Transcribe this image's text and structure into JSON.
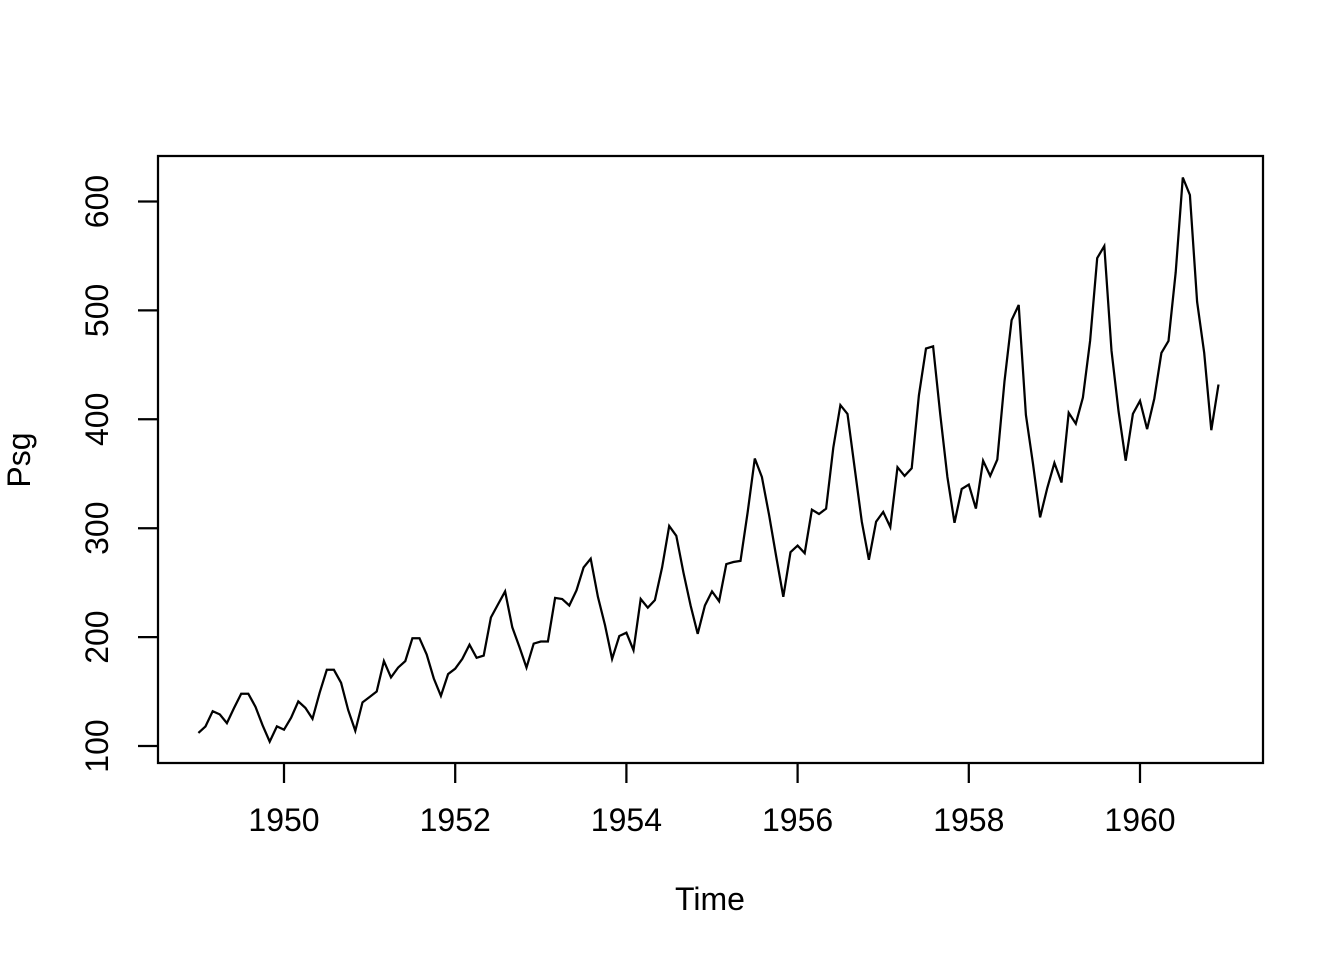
{
  "chart_data": {
    "type": "line",
    "title": "",
    "xlabel": "Time",
    "ylabel": "Psg",
    "x_start": 1949,
    "frequency": 12,
    "series": [
      {
        "name": "Psg",
        "values": [
          112,
          118,
          132,
          129,
          121,
          135,
          148,
          148,
          136,
          119,
          104,
          118,
          115,
          126,
          141,
          135,
          125,
          149,
          170,
          170,
          158,
          133,
          114,
          140,
          145,
          150,
          178,
          163,
          172,
          178,
          199,
          199,
          184,
          162,
          146,
          166,
          171,
          180,
          193,
          181,
          183,
          218,
          230,
          242,
          209,
          191,
          172,
          194,
          196,
          196,
          236,
          235,
          229,
          243,
          264,
          272,
          237,
          211,
          180,
          201,
          204,
          188,
          235,
          227,
          234,
          264,
          302,
          293,
          259,
          229,
          203,
          229,
          242,
          233,
          267,
          269,
          270,
          315,
          364,
          347,
          312,
          274,
          237,
          278,
          284,
          277,
          317,
          313,
          318,
          374,
          413,
          405,
          355,
          306,
          271,
          306,
          315,
          301,
          356,
          348,
          355,
          422,
          465,
          467,
          404,
          347,
          305,
          336,
          340,
          318,
          362,
          348,
          363,
          435,
          491,
          505,
          404,
          359,
          310,
          337,
          360,
          342,
          406,
          396,
          420,
          472,
          548,
          559,
          463,
          407,
          362,
          405,
          417,
          391,
          419,
          461,
          472,
          535,
          622,
          606,
          508,
          461,
          390,
          432
        ]
      }
    ],
    "x_ticks": [
      1950,
      1952,
      1954,
      1956,
      1958,
      1960
    ],
    "y_ticks": [
      100,
      200,
      300,
      400,
      500,
      600
    ],
    "xlim": [
      1948.53,
      1961.44
    ],
    "ylim": [
      83.3,
      642.7
    ],
    "grid": false,
    "legend": "none",
    "line_color": "#000000",
    "background_color": "#ffffff"
  }
}
